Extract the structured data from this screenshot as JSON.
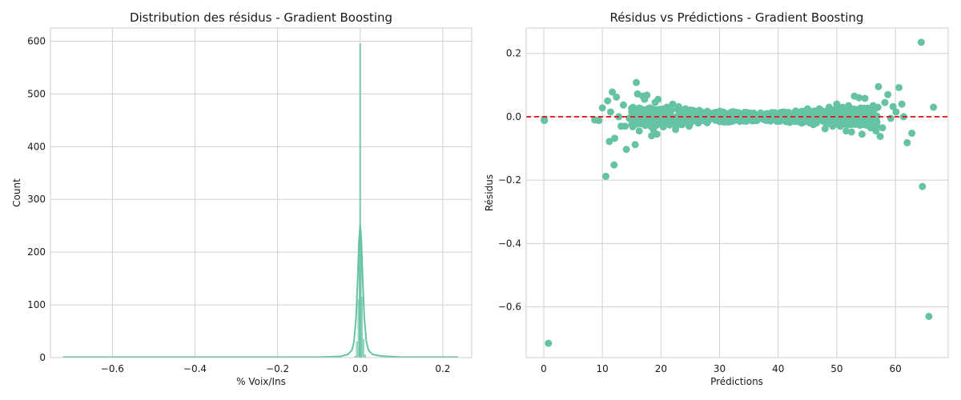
{
  "colors": {
    "series": "#66c2a5",
    "zero_line": "#e41a1c",
    "grid": "#cfcfcf"
  },
  "chart_data": [
    {
      "type": "histogram",
      "title": "Distribution des résidus - Gradient Boosting",
      "xlabel": "% Voix/Ins",
      "ylabel": "Count",
      "xlim": [
        -0.75,
        0.27
      ],
      "ylim": [
        0,
        625
      ],
      "xticks": [
        -0.6,
        -0.4,
        -0.2,
        0.0,
        0.2
      ],
      "xtick_labels": [
        "−0.6",
        "−0.4",
        "−0.2",
        "0.0",
        "0.2"
      ],
      "yticks": [
        0,
        100,
        200,
        300,
        400,
        500,
        600
      ],
      "grid": true,
      "series": [
        {
          "kind": "bars",
          "bins": [
            {
              "x": -0.012,
              "count": 3
            },
            {
              "x": -0.008,
              "count": 30
            },
            {
              "x": -0.004,
              "count": 110
            },
            {
              "x": -0.0015,
              "count": 230
            },
            {
              "x": 0.0,
              "count": 595
            },
            {
              "x": 0.0015,
              "count": 240
            },
            {
              "x": 0.004,
              "count": 115
            },
            {
              "x": 0.008,
              "count": 35
            },
            {
              "x": 0.012,
              "count": 5
            }
          ]
        },
        {
          "kind": "kde",
          "x": [
            -0.72,
            -0.3,
            -0.1,
            -0.05,
            -0.03,
            -0.02,
            -0.015,
            -0.01,
            -0.006,
            -0.003,
            0.0,
            0.003,
            0.006,
            0.01,
            0.015,
            0.02,
            0.03,
            0.05,
            0.1,
            0.237
          ],
          "y": [
            1,
            1,
            1,
            2,
            6,
            14,
            30,
            75,
            150,
            220,
            252,
            220,
            150,
            75,
            30,
            14,
            6,
            3,
            1,
            1
          ]
        }
      ]
    },
    {
      "type": "scatter",
      "title": "Résidus vs Prédictions - Gradient Boosting",
      "xlabel": "Prédictions",
      "ylabel": "Résidus",
      "xlim": [
        -3,
        69
      ],
      "ylim": [
        -0.76,
        0.28
      ],
      "xticks": [
        0,
        10,
        20,
        30,
        40,
        50,
        60
      ],
      "yticks": [
        -0.6,
        -0.4,
        -0.2,
        0.0,
        0.2
      ],
      "ytick_labels": [
        "−0.6",
        "−0.4",
        "−0.2",
        "0.0",
        "0.2"
      ],
      "reference_line": 0,
      "grid": true,
      "series": [
        {
          "kind": "points",
          "points": [
            [
              0.1,
              -0.008
            ],
            [
              0.1,
              -0.012
            ],
            [
              0.8,
              -0.715
            ],
            [
              8.7,
              -0.01
            ],
            [
              9.4,
              -0.012
            ],
            [
              10.0,
              0.028
            ],
            [
              10.6,
              -0.188
            ],
            [
              10.9,
              0.05
            ],
            [
              11.2,
              -0.078
            ],
            [
              11.4,
              0.015
            ],
            [
              11.7,
              0.078
            ],
            [
              12.0,
              -0.152
            ],
            [
              12.1,
              -0.068
            ],
            [
              12.4,
              0.062
            ],
            [
              12.8,
              0.0
            ],
            [
              13.2,
              -0.03
            ],
            [
              13.6,
              0.037
            ],
            [
              13.9,
              -0.03
            ],
            [
              14.1,
              -0.103
            ],
            [
              14.6,
              -0.005
            ],
            [
              15.1,
              -0.015
            ],
            [
              15.6,
              -0.088
            ],
            [
              15.8,
              0.108
            ],
            [
              16.0,
              0.072
            ],
            [
              16.3,
              -0.045
            ],
            [
              16.6,
              0.025
            ],
            [
              16.9,
              0.065
            ],
            [
              17.2,
              0.055
            ],
            [
              17.6,
              0.068
            ],
            [
              18.1,
              0.028
            ],
            [
              18.4,
              -0.06
            ],
            [
              18.7,
              -0.04
            ],
            [
              19.0,
              0.045
            ],
            [
              19.3,
              -0.055
            ],
            [
              19.5,
              0.055
            ],
            [
              20.0,
              0.022
            ],
            [
              20.4,
              -0.032
            ],
            [
              21.0,
              0.03
            ],
            [
              21.5,
              -0.026
            ],
            [
              22.0,
              0.04
            ],
            [
              22.5,
              -0.04
            ],
            [
              23.0,
              0.032
            ],
            [
              23.6,
              -0.025
            ],
            [
              24.2,
              0.025
            ],
            [
              24.8,
              -0.03
            ],
            [
              25.5,
              0.02
            ],
            [
              26.3,
              -0.018
            ],
            [
              27.0,
              0.015
            ],
            [
              28.0,
              -0.015
            ],
            [
              29.0,
              0.012
            ],
            [
              30.0,
              -0.012
            ],
            [
              31.0,
              0.01
            ],
            [
              32.0,
              -0.012
            ],
            [
              33.0,
              0.01
            ],
            [
              34.0,
              -0.01
            ],
            [
              35.0,
              0.012
            ],
            [
              36.0,
              -0.01
            ],
            [
              37.0,
              0.012
            ],
            [
              38.0,
              -0.012
            ],
            [
              39.0,
              0.012
            ],
            [
              40.0,
              -0.012
            ],
            [
              41.0,
              0.015
            ],
            [
              42.0,
              -0.018
            ],
            [
              43.0,
              0.018
            ],
            [
              44.0,
              -0.02
            ],
            [
              45.0,
              0.025
            ],
            [
              46.0,
              -0.025
            ],
            [
              47.0,
              0.025
            ],
            [
              48.0,
              -0.038
            ],
            [
              48.7,
              0.03
            ],
            [
              49.3,
              -0.03
            ],
            [
              50.0,
              0.04
            ],
            [
              50.6,
              -0.03
            ],
            [
              51.0,
              0.03
            ],
            [
              51.6,
              -0.045
            ],
            [
              52.0,
              0.035
            ],
            [
              52.5,
              -0.048
            ],
            [
              53.0,
              0.065
            ],
            [
              53.4,
              -0.02
            ],
            [
              53.8,
              0.06
            ],
            [
              54.3,
              -0.055
            ],
            [
              54.8,
              0.058
            ],
            [
              55.3,
              0.02
            ],
            [
              55.8,
              -0.035
            ],
            [
              56.2,
              0.035
            ],
            [
              56.7,
              -0.045
            ],
            [
              57.1,
              0.095
            ],
            [
              57.4,
              -0.062
            ],
            [
              57.8,
              -0.035
            ],
            [
              58.2,
              0.045
            ],
            [
              58.7,
              0.07
            ],
            [
              59.2,
              -0.005
            ],
            [
              59.6,
              0.032
            ],
            [
              60.1,
              0.015
            ],
            [
              60.6,
              0.092
            ],
            [
              61.1,
              0.04
            ],
            [
              61.4,
              0.0
            ],
            [
              62.0,
              -0.082
            ],
            [
              62.8,
              -0.052
            ],
            [
              64.4,
              0.235
            ],
            [
              64.6,
              -0.22
            ],
            [
              65.7,
              -0.63
            ],
            [
              66.5,
              0.03
            ]
          ]
        }
      ]
    }
  ]
}
